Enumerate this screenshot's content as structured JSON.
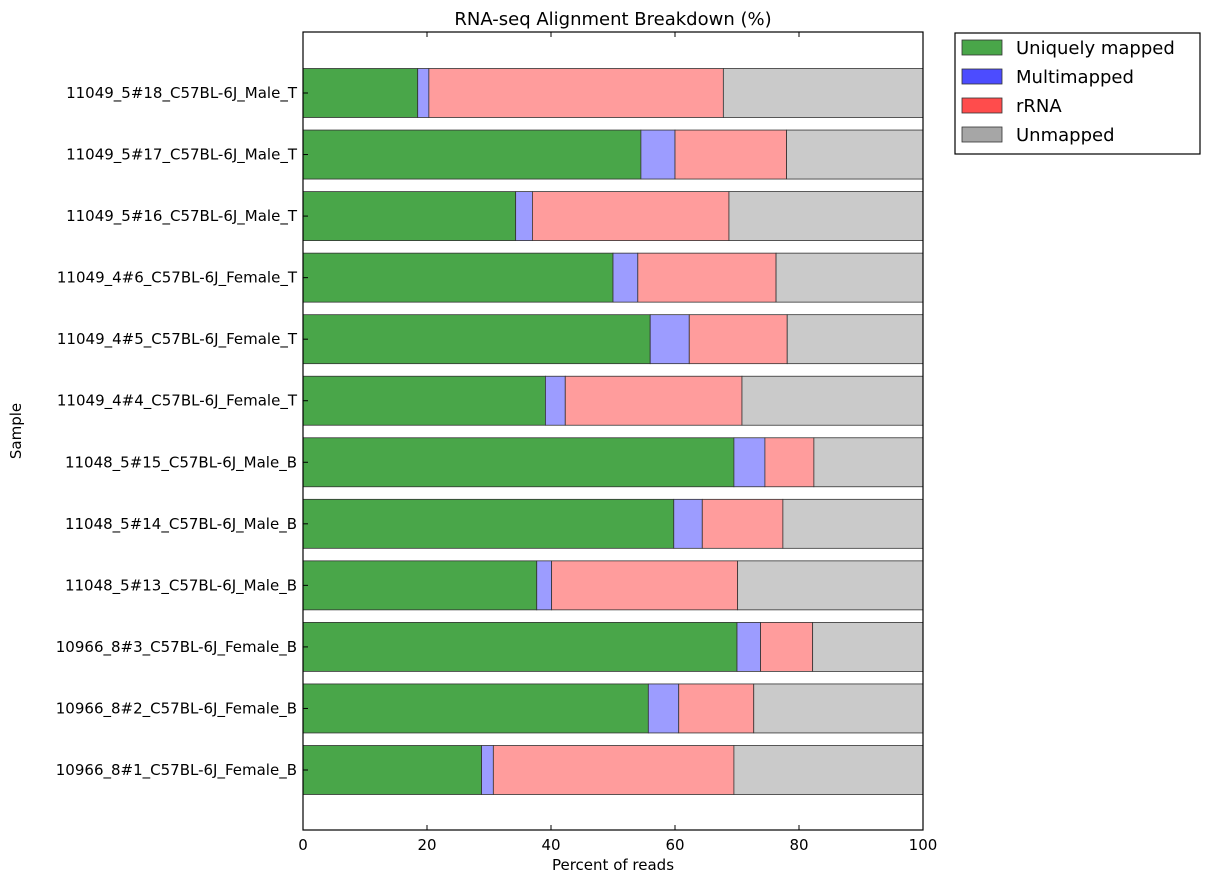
{
  "chart_data": {
    "type": "bar",
    "orientation": "horizontal",
    "stacked": true,
    "title": "RNA-seq Alignment Breakdown (%)",
    "xlabel": "Percent of reads",
    "ylabel": "Sample",
    "xlim": [
      0,
      100
    ],
    "xticks": [
      "0",
      "20",
      "40",
      "60",
      "80",
      "100"
    ],
    "categories": [
      "11049_5#18_C57BL-6J_Male_T",
      "11049_5#17_C57BL-6J_Male_T",
      "11049_5#16_C57BL-6J_Male_T",
      "11049_4#6_C57BL-6J_Female_T",
      "11049_4#5_C57BL-6J_Female_T",
      "11049_4#4_C57BL-6J_Female_T",
      "11048_5#15_C57BL-6J_Male_B",
      "11048_5#14_C57BL-6J_Male_B",
      "11048_5#13_C57BL-6J_Male_B",
      "10966_8#3_C57BL-6J_Female_B",
      "10966_8#2_C57BL-6J_Female_B",
      "10966_8#1_C57BL-6J_Female_B"
    ],
    "series": [
      {
        "name": "Uniquely mapped",
        "legend_color": "#49a649",
        "bar_color": "#49a649",
        "values": [
          18.5,
          54.5,
          34.3,
          50.0,
          56.0,
          39.1,
          69.5,
          59.8,
          37.7,
          70.0,
          55.7,
          28.8
        ]
      },
      {
        "name": "Multimapped",
        "legend_color": "#4c4cff",
        "bar_color": "#9c9cff",
        "values": [
          1.8,
          5.5,
          2.7,
          4.0,
          6.3,
          3.2,
          5.0,
          4.6,
          2.4,
          3.8,
          4.9,
          1.9
        ]
      },
      {
        "name": "rRNA",
        "legend_color": "#ff4c4c",
        "bar_color": "#ff9c9c",
        "values": [
          47.5,
          18.0,
          31.7,
          22.3,
          15.8,
          28.5,
          7.9,
          13.0,
          30.0,
          8.4,
          12.1,
          38.8
        ]
      },
      {
        "name": "Unmapped",
        "legend_color": "#a6a6a6",
        "bar_color": "#cacaca",
        "values": [
          32.2,
          22.0,
          31.3,
          23.7,
          21.9,
          29.2,
          17.6,
          22.6,
          29.9,
          17.8,
          27.3,
          30.5
        ]
      }
    ],
    "legend_position": "outside-top-right",
    "grid": false
  }
}
